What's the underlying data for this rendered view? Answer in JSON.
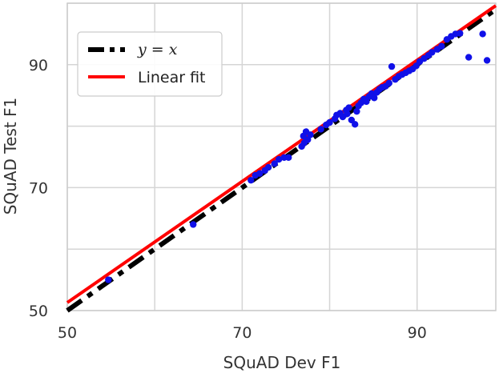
{
  "chart_data": {
    "type": "scatter",
    "xlabel": "SQuAD Dev F1",
    "ylabel": "SQuAD Test F1",
    "xlim": [
      50,
      99
    ],
    "ylim": [
      50,
      100
    ],
    "xticks": [
      50,
      70,
      90
    ],
    "yticks": [
      50,
      70,
      90
    ],
    "grid": true,
    "legend": {
      "placement": "top-left",
      "entries": [
        {
          "label": "y = x",
          "style": "dashed",
          "color": "#000000"
        },
        {
          "label": "Linear fit",
          "style": "solid",
          "color": "#ff0000"
        }
      ]
    },
    "reference_line": {
      "name": "y = x",
      "slope": 1,
      "intercept": 0,
      "color": "#000000"
    },
    "fit_line": {
      "name": "Linear fit",
      "x": [
        50,
        99
      ],
      "y": [
        51.3,
        99.6
      ],
      "color": "#ff0000"
    },
    "point_color": "#1010e8",
    "points": [
      {
        "x": 54.7,
        "y": 55.0
      },
      {
        "x": 64.4,
        "y": 64.0
      },
      {
        "x": 71.0,
        "y": 71.2
      },
      {
        "x": 71.5,
        "y": 72.0
      },
      {
        "x": 72.0,
        "y": 72.3
      },
      {
        "x": 72.6,
        "y": 72.8
      },
      {
        "x": 73.0,
        "y": 73.3
      },
      {
        "x": 73.7,
        "y": 73.9
      },
      {
        "x": 74.2,
        "y": 74.6
      },
      {
        "x": 74.8,
        "y": 74.9
      },
      {
        "x": 75.3,
        "y": 74.9
      },
      {
        "x": 76.8,
        "y": 76.7
      },
      {
        "x": 77.1,
        "y": 77.3
      },
      {
        "x": 77.5,
        "y": 77.8
      },
      {
        "x": 77.0,
        "y": 78.4
      },
      {
        "x": 77.3,
        "y": 79.1
      },
      {
        "x": 77.8,
        "y": 78.6
      },
      {
        "x": 79.0,
        "y": 79.5
      },
      {
        "x": 79.6,
        "y": 80.2
      },
      {
        "x": 80.0,
        "y": 80.6
      },
      {
        "x": 80.6,
        "y": 81.2
      },
      {
        "x": 80.8,
        "y": 81.8
      },
      {
        "x": 81.2,
        "y": 82.1
      },
      {
        "x": 81.5,
        "y": 81.5
      },
      {
        "x": 81.9,
        "y": 82.6
      },
      {
        "x": 82.2,
        "y": 83.0
      },
      {
        "x": 82.0,
        "y": 82.0
      },
      {
        "x": 82.5,
        "y": 81.0
      },
      {
        "x": 82.9,
        "y": 80.3
      },
      {
        "x": 83.1,
        "y": 82.4
      },
      {
        "x": 83.3,
        "y": 83.3
      },
      {
        "x": 83.6,
        "y": 83.8
      },
      {
        "x": 83.9,
        "y": 84.4
      },
      {
        "x": 84.2,
        "y": 84.0
      },
      {
        "x": 84.5,
        "y": 84.8
      },
      {
        "x": 84.8,
        "y": 85.3
      },
      {
        "x": 85.1,
        "y": 84.6
      },
      {
        "x": 85.4,
        "y": 85.5
      },
      {
        "x": 85.7,
        "y": 86.0
      },
      {
        "x": 86.0,
        "y": 86.3
      },
      {
        "x": 86.4,
        "y": 86.5
      },
      {
        "x": 86.8,
        "y": 87.0
      },
      {
        "x": 87.1,
        "y": 89.7
      },
      {
        "x": 87.5,
        "y": 87.6
      },
      {
        "x": 87.9,
        "y": 88.1
      },
      {
        "x": 88.3,
        "y": 88.4
      },
      {
        "x": 88.7,
        "y": 88.7
      },
      {
        "x": 89.1,
        "y": 89.0
      },
      {
        "x": 89.5,
        "y": 89.3
      },
      {
        "x": 89.9,
        "y": 89.8
      },
      {
        "x": 90.3,
        "y": 90.5
      },
      {
        "x": 90.8,
        "y": 91.0
      },
      {
        "x": 91.3,
        "y": 91.5
      },
      {
        "x": 91.7,
        "y": 92.0
      },
      {
        "x": 92.3,
        "y": 92.5
      },
      {
        "x": 92.8,
        "y": 93.0
      },
      {
        "x": 93.4,
        "y": 94.1
      },
      {
        "x": 93.9,
        "y": 94.6
      },
      {
        "x": 94.4,
        "y": 95.0
      },
      {
        "x": 94.9,
        "y": 95.1
      },
      {
        "x": 95.9,
        "y": 91.2
      },
      {
        "x": 97.5,
        "y": 95.0
      },
      {
        "x": 98.0,
        "y": 90.7
      }
    ]
  }
}
